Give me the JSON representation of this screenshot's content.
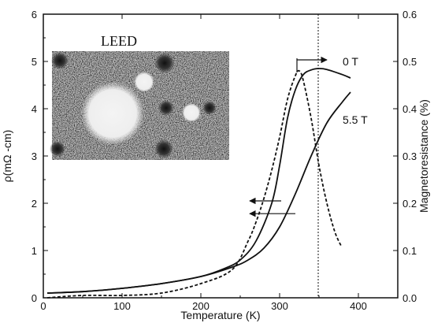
{
  "chart_data": {
    "type": "line",
    "xlabel": "Temperature (K)",
    "ylabel_left": "ρ(mΩ -cm)",
    "ylabel_right": "Magnetoresistance (%)",
    "xlim": [
      0,
      450
    ],
    "ylim_left": [
      0,
      6
    ],
    "ylim_right": [
      0,
      0.6
    ],
    "x_ticks": [
      "0",
      "100",
      "200",
      "300",
      "400"
    ],
    "y_ticks_left": [
      "0",
      "1",
      "2",
      "3",
      "4",
      "5",
      "6"
    ],
    "y_ticks_right": [
      "0.0",
      "0.1",
      "0.2",
      "0.3",
      "0.4",
      "0.5",
      "0.6"
    ],
    "series": [
      {
        "name": "0 T",
        "style": "solid",
        "axis": "left",
        "x": [
          5,
          50,
          100,
          150,
          200,
          230,
          250,
          270,
          290,
          300,
          310,
          320,
          330,
          340,
          350,
          360,
          380,
          390
        ],
        "y": [
          0.1,
          0.13,
          0.2,
          0.3,
          0.45,
          0.62,
          0.8,
          1.2,
          2.0,
          2.8,
          3.8,
          4.4,
          4.72,
          4.82,
          4.85,
          4.83,
          4.72,
          4.65
        ]
      },
      {
        "name": "5.5 T",
        "style": "solid",
        "axis": "left",
        "x": [
          5,
          50,
          100,
          150,
          200,
          240,
          260,
          280,
          300,
          320,
          340,
          360,
          380,
          390
        ],
        "y": [
          0.1,
          0.13,
          0.2,
          0.3,
          0.45,
          0.65,
          0.8,
          1.05,
          1.5,
          2.2,
          3.0,
          3.7,
          4.15,
          4.35
        ]
      },
      {
        "style": "dashed",
        "axis": "right",
        "x": [
          5,
          50,
          100,
          150,
          200,
          240,
          260,
          270,
          280,
          290,
          300,
          310,
          320,
          325,
          330,
          340,
          350,
          360,
          370,
          378
        ],
        "y": [
          0.0,
          0.005,
          0.005,
          0.01,
          0.03,
          0.06,
          0.12,
          0.16,
          0.21,
          0.27,
          0.34,
          0.42,
          0.47,
          0.48,
          0.46,
          0.38,
          0.28,
          0.2,
          0.14,
          0.11
        ]
      }
    ],
    "annotations": {
      "label_0T": "0 T",
      "label_5T": "5.5 T",
      "inset_title": "LEED"
    }
  }
}
